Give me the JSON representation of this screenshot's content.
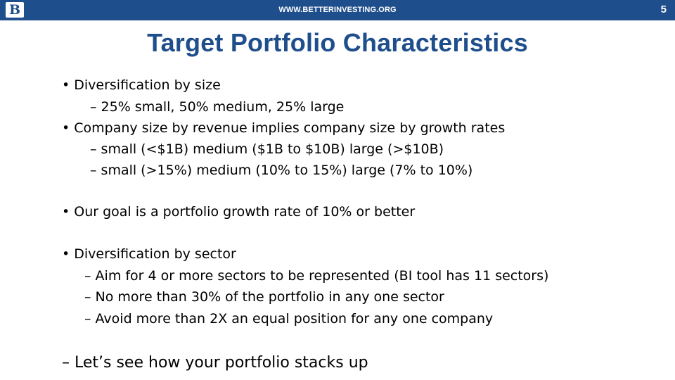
{
  "header": {
    "url": "WWW.BETTERINVESTING.ORG",
    "page_number": "5",
    "logo_letter": "B"
  },
  "slide": {
    "title": "Target Portfolio Characteristics",
    "lines": [
      "• Diversification by size",
      "– 25% small, 50% medium, 25% large",
      "• Company size by revenue implies company size by growth rates",
      "– small (<$1B) medium ($1B to $10B) large (>$10B)",
      "– small (>15%) medium (10% to 15%) large (7% to 10%)",
      "• Our goal is a portfolio growth rate of 10% or better",
      "•  Diversification by sector",
      "– Aim for 4 or more sectors to be represented (BI tool has 11 sectors)",
      "– No more than 30% of the portfolio in any one sector",
      "– Avoid more than 2X an equal position for any one company",
      "– Let’s see how your portfolio stacks up"
    ]
  },
  "colors": {
    "brand_blue": "#1f4e8c"
  }
}
